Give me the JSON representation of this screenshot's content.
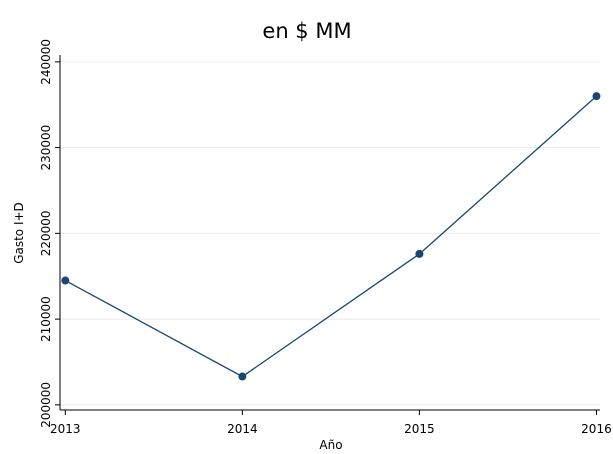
{
  "chart_data": {
    "type": "line",
    "title": "en $ MM",
    "x_label": "Año",
    "y_label": "Gasto I+D",
    "x": [
      2013,
      2014,
      2015,
      2016
    ],
    "series": [
      {
        "name": "Gasto I+D",
        "color": "#1a476f",
        "values": [
          214500,
          203300,
          217600,
          236000
        ]
      }
    ],
    "xlim": [
      2012.97,
      2016.02
    ],
    "xticks": [
      2013,
      2014,
      2015,
      2016
    ],
    "ylim": [
      199400,
      240800
    ],
    "yticks": [
      200000,
      210000,
      220000,
      230000,
      240000
    ],
    "grid": true
  }
}
